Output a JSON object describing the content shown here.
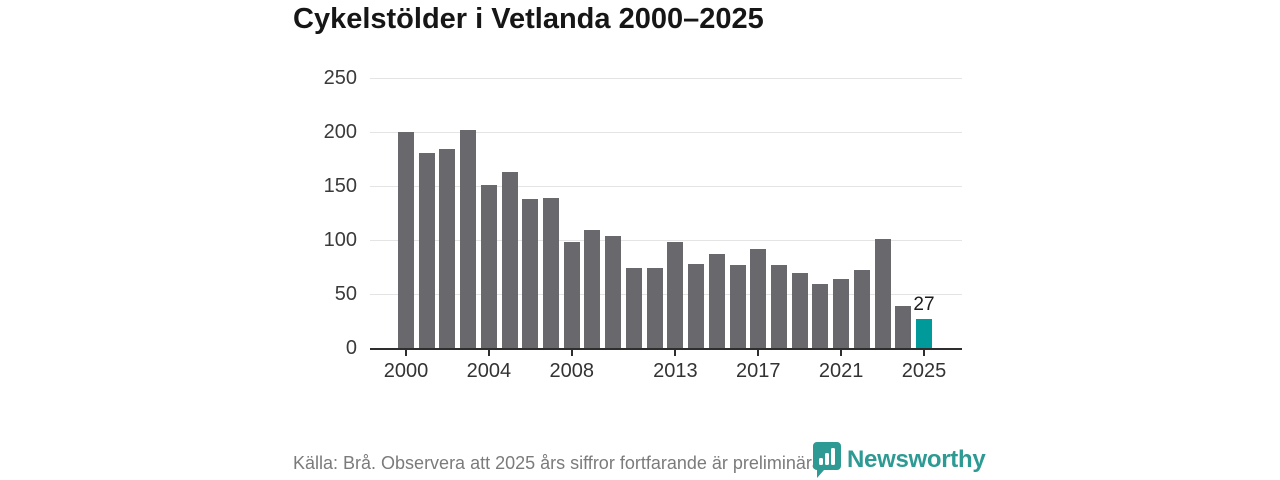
{
  "title": "Cykelstölder i Vetlanda 2000–2025",
  "chart_data": {
    "type": "bar",
    "x": [
      2000,
      2001,
      2002,
      2003,
      2004,
      2005,
      2006,
      2007,
      2008,
      2009,
      2010,
      2011,
      2012,
      2013,
      2014,
      2015,
      2016,
      2017,
      2018,
      2019,
      2020,
      2021,
      2022,
      2023,
      2024,
      2025
    ],
    "values": [
      200,
      181,
      184,
      202,
      151,
      163,
      138,
      139,
      98,
      109,
      104,
      74,
      74,
      98,
      78,
      87,
      77,
      92,
      77,
      69,
      59,
      64,
      72,
      101,
      39,
      27
    ],
    "title": "Cykelstölder i Vetlanda 2000–2025",
    "xlabel": "",
    "ylabel": "",
    "ylim": [
      0,
      250
    ],
    "y_ticks": [
      0,
      50,
      100,
      150,
      200,
      250
    ],
    "x_tick_years": [
      2000,
      2004,
      2008,
      2013,
      2017,
      2021,
      2025
    ],
    "grid": true,
    "legend": "none",
    "highlight_year": 2025,
    "highlight_value_label": "27",
    "bar_color": "#69696d",
    "highlight_color": "#009a9b",
    "grid_color": "#e4e4e4",
    "axis_color": "#2e2e2e"
  },
  "footer": {
    "source": "Källa: Brå. Observera att 2025 års siffror fortfarande är preliminära.",
    "brand": "Newsworthy",
    "brand_color": "#2d9a93"
  }
}
